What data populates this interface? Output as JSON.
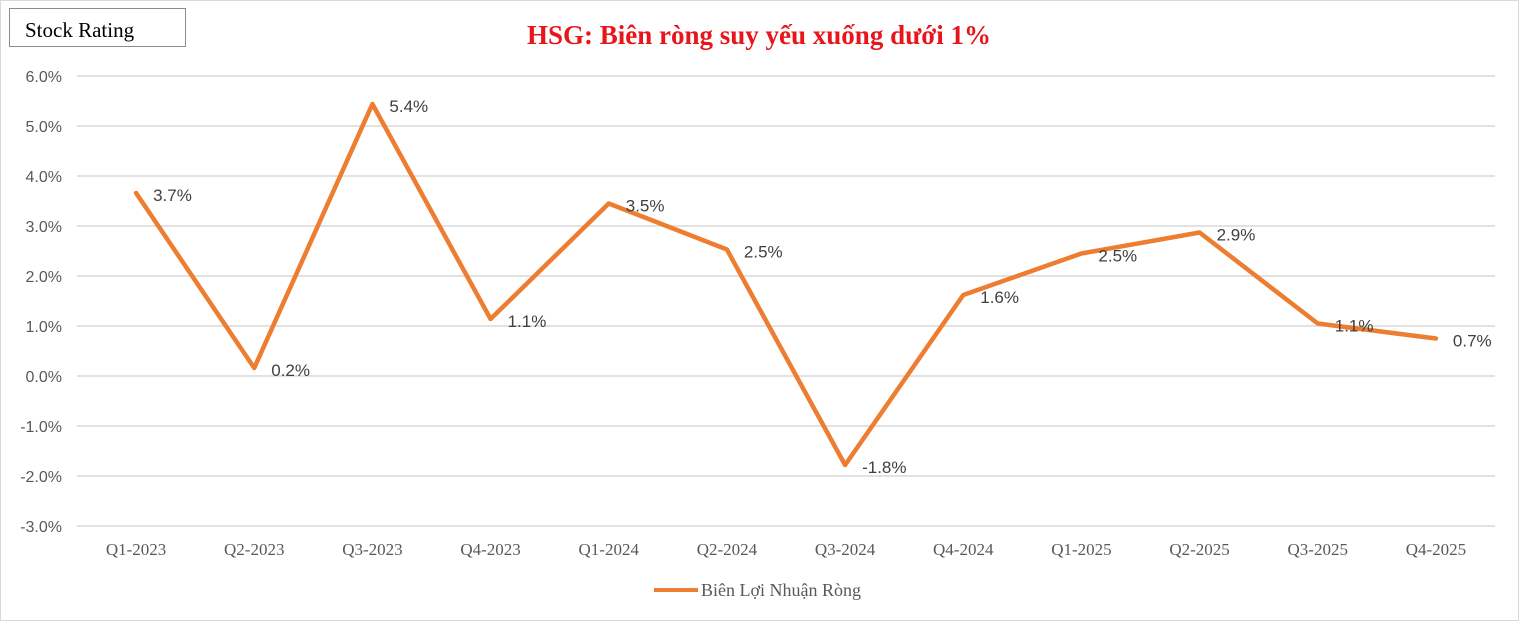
{
  "badge": "Stock Rating",
  "chart_data": {
    "type": "line",
    "title": "HSG: Biên ròng suy yếu xuống dưới 1%",
    "categories": [
      "Q1-2023",
      "Q2-2023",
      "Q3-2023",
      "Q4-2023",
      "Q1-2024",
      "Q2-2024",
      "Q3-2024",
      "Q4-2024",
      "Q1-2025",
      "Q2-2025",
      "Q3-2025",
      "Q4-2025"
    ],
    "series": [
      {
        "name": "Biên Lợi Nhuận Ròng",
        "color": "#ed7d31",
        "values": [
          3.66,
          0.16,
          5.44,
          1.14,
          3.45,
          2.53,
          -1.78,
          1.62,
          2.45,
          2.87,
          1.05,
          0.75
        ],
        "labels": [
          "3.7%",
          "0.2%",
          "5.4%",
          "1.1%",
          "3.5%",
          "2.5%",
          "-1.8%",
          "1.6%",
          "2.5%",
          "2.9%",
          "1.1%",
          "0.7%"
        ]
      }
    ],
    "ylim": [
      -3.0,
      6.0
    ],
    "yticks": [
      6.0,
      5.0,
      4.0,
      3.0,
      2.0,
      1.0,
      0.0,
      -1.0,
      -2.0,
      -3.0
    ],
    "ytick_labels": [
      "6.0%",
      "5.0%",
      "4.0%",
      "3.0%",
      "2.0%",
      "1.0%",
      "0.0%",
      "-1.0%",
      "-2.0%",
      "-3.0%"
    ],
    "grid": true,
    "legend": "bottom-center"
  }
}
